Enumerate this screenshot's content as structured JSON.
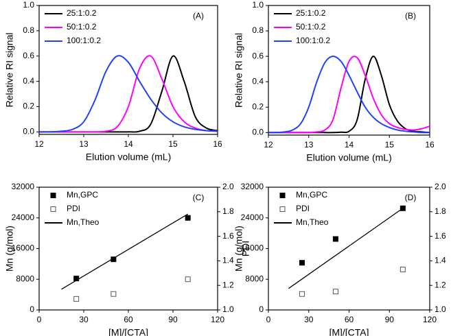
{
  "chart_data": [
    {
      "type": "line",
      "annotation": "(A)",
      "xlabel": "Elution volume (mL)",
      "ylabel": "Relative RI signal",
      "x": [
        12,
        12.25,
        12.5,
        12.75,
        13,
        13.25,
        13.5,
        13.75,
        14,
        14.25,
        14.5,
        14.75,
        15,
        15.25,
        15.5,
        15.75,
        16
      ],
      "series": [
        {
          "name": "25:1:0.2",
          "color": "#000000",
          "values": [
            0,
            0,
            0,
            0,
            0,
            0,
            0,
            0,
            0,
            0.005,
            0.06,
            0.32,
            0.6,
            0.4,
            0.12,
            0.03,
            0.01
          ]
        },
        {
          "name": "50:1:0.2",
          "color": "#ff00ff",
          "values": [
            0,
            0,
            0,
            0,
            0,
            0,
            0.005,
            0.04,
            0.2,
            0.5,
            0.6,
            0.42,
            0.2,
            0.08,
            0.03,
            0.01,
            0.005
          ]
        },
        {
          "name": "100:1:0.2",
          "color": "#2040ff",
          "values": [
            0,
            0,
            0.005,
            0.02,
            0.08,
            0.25,
            0.48,
            0.6,
            0.55,
            0.4,
            0.26,
            0.15,
            0.08,
            0.04,
            0.02,
            0.01,
            0.005
          ]
        }
      ],
      "xlim": [
        12,
        16
      ],
      "xticks": [
        12,
        13,
        14,
        15,
        16
      ],
      "ylim": [
        -0.02,
        1.0
      ],
      "yticks": [
        {
          "value": 0,
          "label": "0.0"
        },
        0.2,
        0.4,
        0.6,
        0.8,
        {
          "value": 1,
          "label": "1.0"
        }
      ],
      "legend": "top-left"
    },
    {
      "type": "line",
      "annotation": "(B)",
      "xlabel": "Elution volume (mL)",
      "ylabel": "Relative RI signal",
      "x": [
        12,
        12.2,
        12.4,
        12.6,
        12.8,
        13,
        13.2,
        13.4,
        13.6,
        13.8,
        14,
        14.2,
        14.4,
        14.6,
        14.8,
        15,
        15.2,
        15.4,
        15.6,
        15.8,
        16
      ],
      "series": [
        {
          "name": "25:1:0.2",
          "color": "#000000",
          "values": [
            0,
            0,
            0,
            0,
            0,
            0,
            0,
            0,
            0,
            0.003,
            0.01,
            0.1,
            0.42,
            0.6,
            0.45,
            0.22,
            0.09,
            0.03,
            0.01,
            0.005,
            0
          ]
        },
        {
          "name": "50:1:0.2",
          "color": "#ff00ff",
          "values": [
            0,
            0,
            0,
            0,
            0,
            0,
            0.005,
            0.02,
            0.1,
            0.35,
            0.56,
            0.59,
            0.45,
            0.27,
            0.14,
            0.07,
            0.04,
            0.025,
            0.02,
            0.03,
            0.05
          ]
        },
        {
          "name": "100:1:0.2",
          "color": "#2040ff",
          "values": [
            0,
            0,
            0.005,
            0.02,
            0.07,
            0.2,
            0.4,
            0.55,
            0.6,
            0.56,
            0.45,
            0.32,
            0.2,
            0.12,
            0.07,
            0.04,
            0.02,
            0.01,
            0.005,
            0,
            0
          ]
        }
      ],
      "xlim": [
        12,
        16
      ],
      "xticks": [
        12,
        13,
        14,
        15,
        16
      ],
      "ylim": [
        -0.02,
        1.0
      ],
      "yticks": [
        {
          "value": 0,
          "label": "0.0"
        },
        0.2,
        0.4,
        0.6,
        0.8,
        {
          "value": 1,
          "label": "1.0"
        }
      ],
      "legend": "top-left"
    },
    {
      "type": "scatter",
      "annotation": "(C)",
      "xlabel": "[M]/[CTA]",
      "ylabel": "Mn (g/mol)",
      "y2label": "PDI",
      "series": [
        {
          "name": "Mn,GPC",
          "style": "filled-square",
          "color": "#000000",
          "x": [
            25,
            50,
            100
          ],
          "values": [
            8200,
            13200,
            24000
          ]
        },
        {
          "name": "PDI",
          "style": "open-square",
          "color": "#555555",
          "axis": "y2",
          "x": [
            25,
            50,
            100
          ],
          "values": [
            1.09,
            1.13,
            1.25
          ]
        },
        {
          "name": "Mn,Theo",
          "style": "line",
          "color": "#000000",
          "x": [
            15,
            100
          ],
          "values": [
            5400,
            25000
          ]
        }
      ],
      "xlim": [
        0,
        120
      ],
      "xticks": [
        0,
        30,
        60,
        90,
        120
      ],
      "ylim": [
        0,
        32000
      ],
      "yticks": [
        0,
        8000,
        16000,
        24000,
        32000
      ],
      "y2lim": [
        1,
        2
      ],
      "y2ticks": [
        {
          "value": 1,
          "label": "1.0"
        },
        1.2,
        1.4,
        1.6,
        1.8,
        {
          "value": 2,
          "label": "2.0"
        }
      ],
      "legend": "top-left"
    },
    {
      "type": "scatter",
      "annotation": "(D)",
      "xlabel": "[M]/[CTA]",
      "ylabel": "Mn (g/mol)",
      "y2label": "PDI",
      "series": [
        {
          "name": "Mn,GPC",
          "style": "filled-square",
          "color": "#000000",
          "x": [
            25,
            50,
            100
          ],
          "values": [
            12300,
            18500,
            26500
          ]
        },
        {
          "name": "PDI",
          "style": "open-square",
          "color": "#555555",
          "axis": "y2",
          "x": [
            25,
            50,
            100
          ],
          "values": [
            1.13,
            1.15,
            1.33
          ]
        },
        {
          "name": "Mn,Theo",
          "style": "line",
          "color": "#000000",
          "x": [
            15,
            100
          ],
          "values": [
            5600,
            26500
          ]
        }
      ],
      "xlim": [
        0,
        120
      ],
      "xticks": [
        0,
        30,
        60,
        90,
        120
      ],
      "ylim": [
        0,
        32000
      ],
      "yticks": [
        0,
        8000,
        16000,
        24000,
        32000
      ],
      "y2lim": [
        1,
        2
      ],
      "y2ticks": [
        {
          "value": 1,
          "label": "1.0"
        },
        1.2,
        1.4,
        1.6,
        1.8,
        {
          "value": 2,
          "label": "2.0"
        }
      ],
      "legend": "top-left"
    }
  ]
}
